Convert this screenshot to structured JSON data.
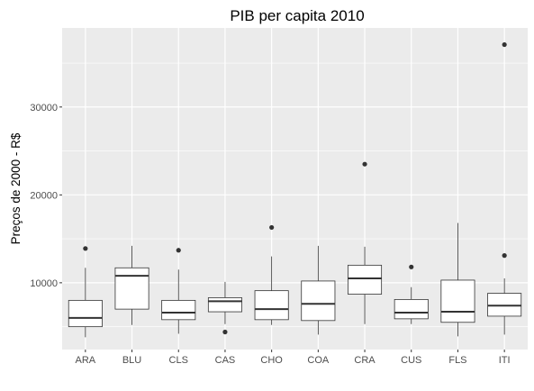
{
  "chart_data": {
    "type": "boxplot",
    "title": "PIB per capita 2010",
    "xlabel": "",
    "ylabel": "Preços de 2000 - R$",
    "ylim": [
      2400,
      39000
    ],
    "y_ticks": [
      10000,
      20000,
      30000
    ],
    "y_tick_labels": [
      "10000",
      "20000",
      "30000"
    ],
    "grid": true,
    "legend": "none",
    "colors": {
      "panel": "#ebebeb",
      "grid": "#ffffff",
      "box_fill": "#ffffff",
      "box_stroke": "#333333",
      "point": "#333333"
    },
    "categories": [
      "ARA",
      "BLU",
      "CLS",
      "CAS",
      "CHO",
      "COA",
      "CRA",
      "CUS",
      "FLS",
      "ITI"
    ],
    "boxes": [
      {
        "category": "ARA",
        "min": 3800,
        "q1": 5000,
        "median": 6000,
        "q3": 8000,
        "max": 11700,
        "outliers": [
          13900
        ]
      },
      {
        "category": "BLU",
        "min": 5200,
        "q1": 7000,
        "median": 10800,
        "q3": 11700,
        "max": 14200,
        "outliers": []
      },
      {
        "category": "CLS",
        "min": 4200,
        "q1": 5800,
        "median": 6600,
        "q3": 8000,
        "max": 11500,
        "outliers": [
          13700
        ]
      },
      {
        "category": "CAS",
        "min": 5300,
        "q1": 6700,
        "median": 7900,
        "q3": 8300,
        "max": 10100,
        "outliers": [
          4400
        ]
      },
      {
        "category": "CHO",
        "min": 5200,
        "q1": 5800,
        "median": 7000,
        "q3": 9100,
        "max": 13000,
        "outliers": [
          16300
        ]
      },
      {
        "category": "COA",
        "min": 4100,
        "q1": 5700,
        "median": 7600,
        "q3": 10200,
        "max": 14200,
        "outliers": []
      },
      {
        "category": "CRA",
        "min": 5300,
        "q1": 8700,
        "median": 10500,
        "q3": 12000,
        "max": 14100,
        "outliers": [
          23500
        ]
      },
      {
        "category": "CUS",
        "min": 5300,
        "q1": 5900,
        "median": 6600,
        "q3": 8100,
        "max": 9500,
        "outliers": [
          11800
        ]
      },
      {
        "category": "FLS",
        "min": 3900,
        "q1": 5500,
        "median": 6700,
        "q3": 10300,
        "max": 16800,
        "outliers": []
      },
      {
        "category": "ITI",
        "min": 4100,
        "q1": 6200,
        "median": 7400,
        "q3": 8800,
        "max": 10500,
        "outliers": [
          13100,
          37100
        ]
      }
    ]
  }
}
